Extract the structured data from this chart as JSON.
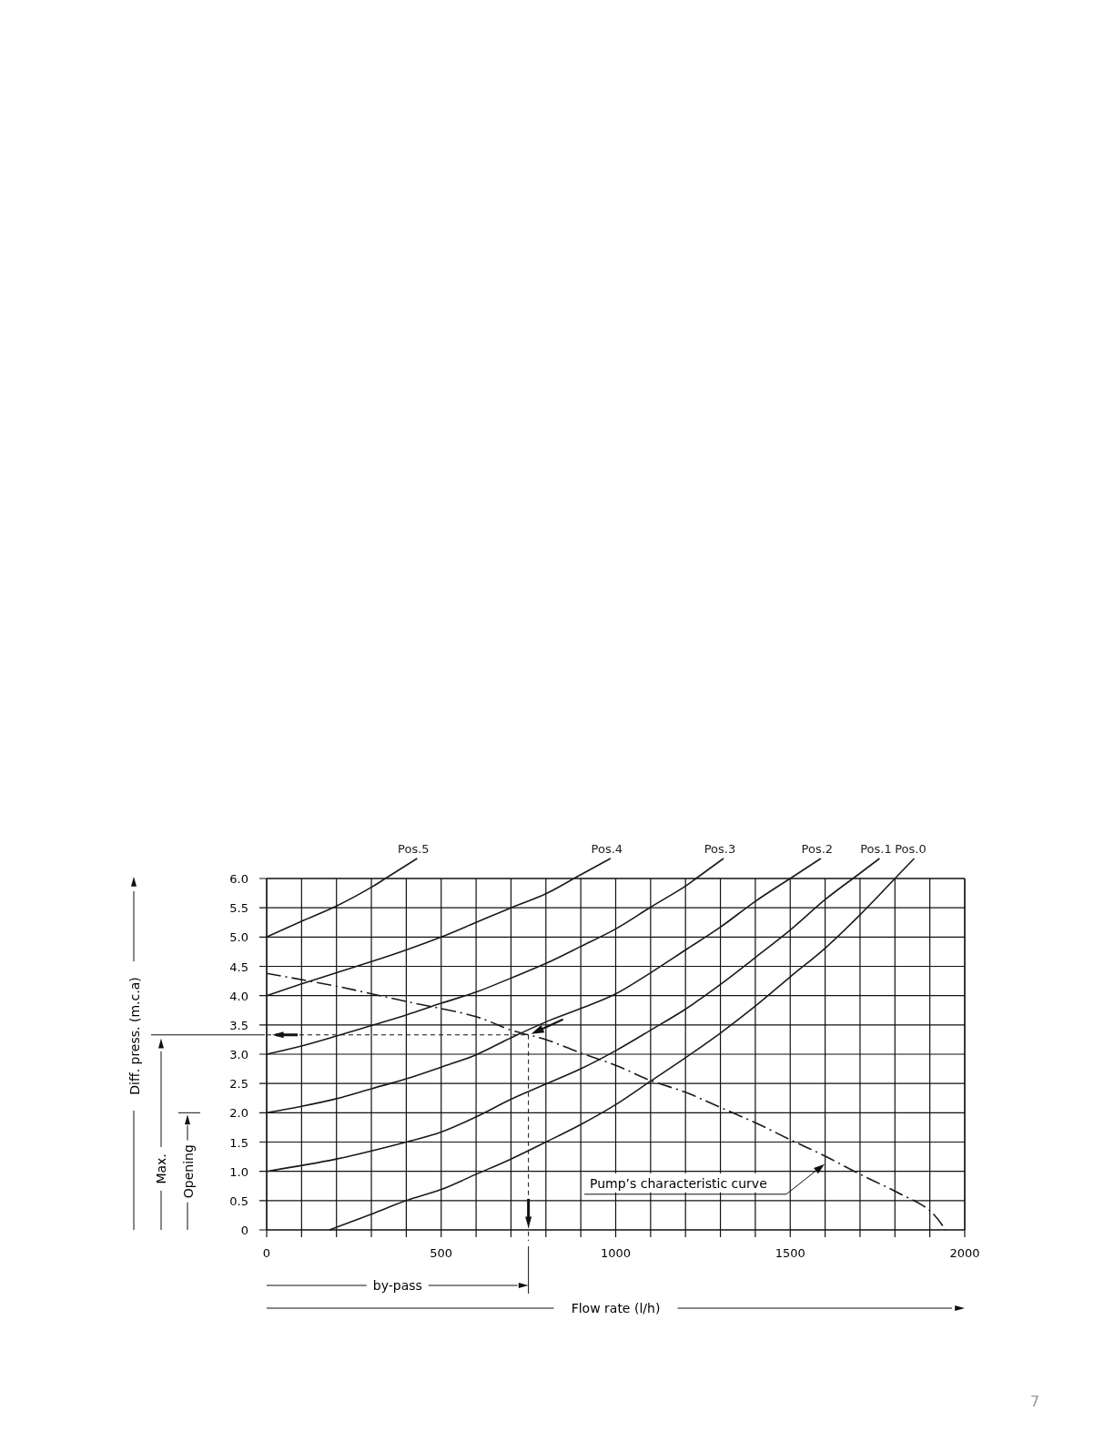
{
  "chart_data": {
    "type": "line",
    "xlabel": "Flow rate (l/h)",
    "xlim": [
      0,
      2000
    ],
    "ylim": [
      0,
      6
    ],
    "xticks": [
      0,
      {
        "value": 100,
        "label": null
      },
      {
        "value": 200,
        "label": null
      },
      {
        "value": 300,
        "label": null
      },
      {
        "value": 400,
        "label": null
      },
      500,
      {
        "value": 600,
        "label": null
      },
      {
        "value": 700,
        "label": null
      },
      {
        "value": 800,
        "label": null
      },
      {
        "value": 900,
        "label": null
      },
      1000,
      {
        "value": 1100,
        "label": null
      },
      {
        "value": 1200,
        "label": null
      },
      {
        "value": 1300,
        "label": null
      },
      {
        "value": 1400,
        "label": null
      },
      1500,
      {
        "value": 1600,
        "label": null
      },
      {
        "value": 1700,
        "label": null
      },
      {
        "value": 1800,
        "label": null
      },
      {
        "value": 1900,
        "label": null
      },
      2000
    ],
    "yticks": [
      0,
      0.5,
      {
        "value": 1,
        "label": "1.0"
      },
      1.5,
      {
        "value": 2,
        "label": "2.0"
      },
      2.5,
      {
        "value": 3,
        "label": "3.0"
      },
      3.5,
      {
        "value": 4,
        "label": "4.0"
      },
      4.5,
      {
        "value": 5,
        "label": "5.0"
      },
      5.5,
      {
        "value": 6,
        "label": "6.0"
      }
    ],
    "grid": true,
    "marker": "none",
    "series": [
      {
        "name": "Pos.5",
        "color": "#1a1a1a",
        "x": [
          0,
          100,
          200,
          300,
          340
        ],
        "values": [
          5.0,
          5.27,
          5.53,
          5.85,
          6.0
        ]
      },
      {
        "name": "Pos.4",
        "color": "#1a1a1a",
        "x": [
          0,
          100,
          200,
          300,
          400,
          500,
          600,
          700,
          800,
          880
        ],
        "values": [
          4.0,
          4.2,
          4.39,
          4.58,
          4.78,
          5.0,
          5.25,
          5.5,
          5.74,
          6.0
        ]
      },
      {
        "name": "Pos.3",
        "color": "#1a1a1a",
        "x": [
          0,
          100,
          200,
          300,
          400,
          500,
          600,
          700,
          800,
          900,
          1000,
          1100,
          1200,
          1230
        ],
        "values": [
          3.0,
          3.14,
          3.31,
          3.49,
          3.67,
          3.87,
          4.06,
          4.3,
          4.55,
          4.84,
          5.14,
          5.51,
          5.87,
          6.0
        ]
      },
      {
        "name": "Pos.2",
        "color": "#1a1a1a",
        "x": [
          0,
          100,
          200,
          300,
          400,
          500,
          600,
          700,
          800,
          900,
          1000,
          1100,
          1200,
          1300,
          1400,
          1500
        ],
        "values": [
          2.0,
          2.11,
          2.24,
          2.41,
          2.58,
          2.78,
          2.99,
          3.28,
          3.55,
          3.78,
          4.03,
          4.39,
          4.78,
          5.17,
          5.61,
          6.0
        ]
      },
      {
        "name": "Pos.1",
        "color": "#1a1a1a",
        "x": [
          0,
          200,
          400,
          500,
          600,
          700,
          800,
          900,
          1000,
          1100,
          1200,
          1300,
          1400,
          1500,
          1600,
          1680
        ],
        "values": [
          1.0,
          1.21,
          1.5,
          1.67,
          1.93,
          2.23,
          2.49,
          2.75,
          3.06,
          3.41,
          3.77,
          4.19,
          4.65,
          5.12,
          5.64,
          6.0
        ]
      },
      {
        "name": "Pos.0",
        "color": "#1a1a1a",
        "x": [
          180,
          300,
          400,
          500,
          600,
          700,
          800,
          900,
          1000,
          1100,
          1200,
          1300,
          1400,
          1500,
          1600,
          1700,
          1800
        ],
        "values": [
          0,
          0.27,
          0.5,
          0.69,
          0.95,
          1.21,
          1.5,
          1.8,
          2.14,
          2.54,
          2.94,
          3.36,
          3.82,
          4.32,
          4.81,
          5.38,
          6.0
        ]
      },
      {
        "color": "#1a1a1a",
        "line_style": "dashed",
        "x": [
          0,
          200,
          400,
          600,
          700,
          750,
          800,
          900,
          1000,
          1100,
          1200,
          1300,
          1400,
          1500,
          1600,
          1700,
          1800,
          1900,
          1945
        ],
        "values": [
          4.38,
          4.16,
          3.9,
          3.64,
          3.41,
          3.33,
          3.25,
          3.02,
          2.81,
          2.55,
          2.35,
          2.09,
          1.83,
          1.54,
          1.26,
          0.95,
          0.66,
          0.33,
          0
        ]
      }
    ],
    "ref_lines": [
      {
        "axis": "y",
        "value": 3.33,
        "line_style": "dashed"
      },
      {
        "axis": "x",
        "value": 750,
        "line_style": "dashed"
      }
    ],
    "annotations": [
      "Diff. press. (m.c.a)",
      "Max.",
      "Opening",
      "by-pass",
      "Pump’s characteristic curve",
      "7"
    ]
  }
}
